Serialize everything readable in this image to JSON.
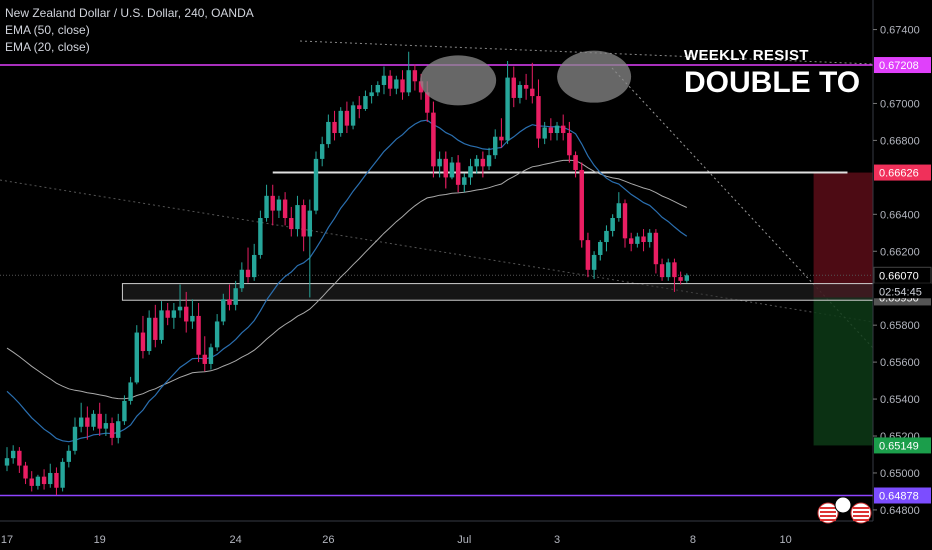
{
  "legend": {
    "symbol_line": "New Zealand Dollar / U.S. Dollar, 240, OANDA",
    "ema50": "EMA (50, close)",
    "ema20": "EMA (20, close)"
  },
  "annotations": {
    "line1": "WEEKLY RESIST",
    "line2": "DOUBLE TO"
  },
  "countdown": "02:54:45",
  "chart_data": {
    "type": "candlestick",
    "instrument": "NZDUSD",
    "timeframe": "240",
    "price_axis": {
      "ylim": [
        0.6474,
        0.6756
      ],
      "ticks": [
        "0.67400",
        "0.67000",
        "0.66800",
        "0.66400",
        "0.66200",
        "0.65800",
        "0.65600",
        "0.65400",
        "0.65200",
        "0.65000",
        "0.64800"
      ]
    },
    "time_axis": {
      "labels": [
        "17",
        "19",
        "24",
        "26",
        "Jul",
        "3",
        "8",
        "10"
      ],
      "label_slots": [
        0,
        15,
        37,
        52,
        74,
        89,
        111,
        126
      ]
    },
    "price_tags": [
      {
        "label": "0.67208",
        "value": 0.67208,
        "bg": "#e040fb",
        "fg": "#ffffff"
      },
      {
        "label": "0.66626",
        "value": 0.66626,
        "bg": "#f0305a",
        "fg": "#ffffff"
      },
      {
        "label": "0.66070",
        "value": 0.6607,
        "bg": "#000000",
        "fg": "#ffffff"
      },
      {
        "label": "0.65950",
        "value": 0.6595,
        "bg": "#555555",
        "fg": "#ffffff"
      },
      {
        "label": "0.65149",
        "value": 0.65149,
        "bg": "#1b9e4b",
        "fg": "#ffffff"
      },
      {
        "label": "0.64878",
        "value": 0.64878,
        "bg": "#7c4dff",
        "fg": "#ffffff"
      }
    ],
    "horizontal_lines": [
      {
        "value": 0.67208,
        "color": "#e040fb"
      },
      {
        "value": 0.64878,
        "color": "#8e44ff"
      },
      {
        "value": 0.66626,
        "color": "#e0e0e0",
        "from_slot": 43,
        "to_slot": 136
      }
    ],
    "support_zone": {
      "top": 0.66025,
      "bottom": 0.65935,
      "from_slot": 19,
      "to_slot": 140
    },
    "position": {
      "entry": 0.6595,
      "stop": 0.66626,
      "target": 0.65149,
      "from_slot": 131,
      "to_slot": 140
    },
    "colors": {
      "up": "#26a69a",
      "down": "#e91e63",
      "ema50": "#aaaaaa",
      "ema20": "#2a6fb0",
      "background": "#000000"
    },
    "candles": [
      [
        0.6504,
        0.6514,
        0.6508,
        0.6501
      ],
      [
        0.6508,
        0.6515,
        0.6512,
        0.6505
      ],
      [
        0.6512,
        0.6514,
        0.6504,
        0.65
      ],
      [
        0.6504,
        0.6506,
        0.6497,
        0.6494
      ],
      [
        0.6497,
        0.6501,
        0.6493,
        0.649
      ],
      [
        0.6493,
        0.6499,
        0.6498,
        0.6491
      ],
      [
        0.6498,
        0.6502,
        0.6494,
        0.6491
      ],
      [
        0.6494,
        0.6505,
        0.65,
        0.6492
      ],
      [
        0.65,
        0.6503,
        0.6492,
        0.6488
      ],
      [
        0.6492,
        0.6508,
        0.6506,
        0.649
      ],
      [
        0.6506,
        0.6515,
        0.6512,
        0.6503
      ],
      [
        0.6512,
        0.653,
        0.6525,
        0.651
      ],
      [
        0.6525,
        0.6538,
        0.653,
        0.6522
      ],
      [
        0.653,
        0.6536,
        0.6525,
        0.6518
      ],
      [
        0.6525,
        0.6534,
        0.6532,
        0.6523
      ],
      [
        0.6532,
        0.6538,
        0.6524,
        0.652
      ],
      [
        0.6524,
        0.6532,
        0.6527,
        0.652
      ],
      [
        0.6527,
        0.653,
        0.6519,
        0.6515
      ],
      [
        0.6519,
        0.6532,
        0.6528,
        0.6516
      ],
      [
        0.6528,
        0.6542,
        0.6539,
        0.6526
      ],
      [
        0.6539,
        0.6552,
        0.6549,
        0.6537
      ],
      [
        0.6549,
        0.658,
        0.6576,
        0.6548
      ],
      [
        0.6576,
        0.6585,
        0.6566,
        0.6562
      ],
      [
        0.6566,
        0.6588,
        0.6584,
        0.6564
      ],
      [
        0.6584,
        0.6591,
        0.6572,
        0.6568
      ],
      [
        0.6572,
        0.6593,
        0.6588,
        0.657
      ],
      [
        0.6588,
        0.6592,
        0.6584,
        0.658
      ],
      [
        0.6584,
        0.6592,
        0.6588,
        0.6578
      ],
      [
        0.6588,
        0.6602,
        0.659,
        0.6584
      ],
      [
        0.659,
        0.6598,
        0.6582,
        0.6576
      ],
      [
        0.6582,
        0.6594,
        0.6585,
        0.6578
      ],
      [
        0.6585,
        0.6592,
        0.6564,
        0.656
      ],
      [
        0.6564,
        0.6574,
        0.6559,
        0.6555
      ],
      [
        0.6559,
        0.657,
        0.6568,
        0.6556
      ],
      [
        0.6568,
        0.6586,
        0.6582,
        0.6566
      ],
      [
        0.6582,
        0.6597,
        0.6594,
        0.658
      ],
      [
        0.6594,
        0.6602,
        0.6591,
        0.6588
      ],
      [
        0.6591,
        0.6604,
        0.66,
        0.6588
      ],
      [
        0.66,
        0.6614,
        0.661,
        0.6598
      ],
      [
        0.661,
        0.6622,
        0.6606,
        0.6603
      ],
      [
        0.6606,
        0.6624,
        0.6618,
        0.6604
      ],
      [
        0.6618,
        0.6642,
        0.6638,
        0.6616
      ],
      [
        0.6638,
        0.6656,
        0.665,
        0.6636
      ],
      [
        0.665,
        0.6656,
        0.6642,
        0.6634
      ],
      [
        0.6642,
        0.665,
        0.6648,
        0.6638
      ],
      [
        0.6648,
        0.6652,
        0.6638,
        0.6634
      ],
      [
        0.6638,
        0.6644,
        0.6632,
        0.6628
      ],
      [
        0.6632,
        0.665,
        0.6645,
        0.6628
      ],
      [
        0.6645,
        0.6648,
        0.6628,
        0.662
      ],
      [
        0.6628,
        0.6648,
        0.6642,
        0.6595
      ],
      [
        0.6642,
        0.6674,
        0.667,
        0.664
      ],
      [
        0.667,
        0.6682,
        0.6678,
        0.6666
      ],
      [
        0.6678,
        0.6694,
        0.669,
        0.6676
      ],
      [
        0.669,
        0.6696,
        0.6684,
        0.668
      ],
      [
        0.6684,
        0.6698,
        0.6696,
        0.6682
      ],
      [
        0.6696,
        0.6701,
        0.6688,
        0.6684
      ],
      [
        0.6688,
        0.6701,
        0.6699,
        0.6686
      ],
      [
        0.6699,
        0.6704,
        0.6697,
        0.6692
      ],
      [
        0.6697,
        0.6707,
        0.6704,
        0.6696
      ],
      [
        0.6704,
        0.671,
        0.6706,
        0.67
      ],
      [
        0.6706,
        0.6712,
        0.671,
        0.6704
      ],
      [
        0.671,
        0.672,
        0.6715,
        0.6705
      ],
      [
        0.6715,
        0.6718,
        0.6708,
        0.6704
      ],
      [
        0.6708,
        0.6715,
        0.6713,
        0.6705
      ],
      [
        0.6713,
        0.6718,
        0.6706,
        0.6702
      ],
      [
        0.6706,
        0.6728,
        0.6718,
        0.6704
      ],
      [
        0.6718,
        0.6721,
        0.6712,
        0.6707
      ],
      [
        0.6712,
        0.6716,
        0.6706,
        0.6702
      ],
      [
        0.6706,
        0.6712,
        0.6695,
        0.669
      ],
      [
        0.6695,
        0.6701,
        0.6666,
        0.666
      ],
      [
        0.6666,
        0.6674,
        0.667,
        0.666
      ],
      [
        0.667,
        0.6674,
        0.666,
        0.6654
      ],
      [
        0.666,
        0.6671,
        0.6668,
        0.6659
      ],
      [
        0.6668,
        0.6672,
        0.6656,
        0.6652
      ],
      [
        0.6656,
        0.6662,
        0.666,
        0.6652
      ],
      [
        0.666,
        0.667,
        0.6666,
        0.6656
      ],
      [
        0.6666,
        0.6672,
        0.667,
        0.6662
      ],
      [
        0.667,
        0.6674,
        0.6666,
        0.666
      ],
      [
        0.6666,
        0.6676,
        0.6672,
        0.6664
      ],
      [
        0.6672,
        0.6686,
        0.6682,
        0.667
      ],
      [
        0.6682,
        0.6692,
        0.668,
        0.6676
      ],
      [
        0.668,
        0.6723,
        0.6714,
        0.6678
      ],
      [
        0.6714,
        0.672,
        0.6703,
        0.6698
      ],
      [
        0.6703,
        0.6712,
        0.671,
        0.67
      ],
      [
        0.671,
        0.6716,
        0.6708,
        0.6702
      ],
      [
        0.6708,
        0.6722,
        0.6704,
        0.67
      ],
      [
        0.6704,
        0.6713,
        0.6681,
        0.6676
      ],
      [
        0.6681,
        0.669,
        0.6687,
        0.6678
      ],
      [
        0.6687,
        0.6692,
        0.6684,
        0.668
      ],
      [
        0.6684,
        0.669,
        0.6688,
        0.668
      ],
      [
        0.6688,
        0.6694,
        0.6684,
        0.668
      ],
      [
        0.6684,
        0.669,
        0.6672,
        0.6668
      ],
      [
        0.6672,
        0.6674,
        0.6664,
        0.666
      ],
      [
        0.6664,
        0.6668,
        0.6626,
        0.6622
      ],
      [
        0.6626,
        0.663,
        0.661,
        0.6606
      ],
      [
        0.661,
        0.662,
        0.6618,
        0.6605
      ],
      [
        0.6618,
        0.6626,
        0.6625,
        0.6615
      ],
      [
        0.6625,
        0.6634,
        0.6631,
        0.662
      ],
      [
        0.6631,
        0.664,
        0.6638,
        0.6628
      ],
      [
        0.6638,
        0.6652,
        0.6646,
        0.6636
      ],
      [
        0.6646,
        0.6648,
        0.6627,
        0.6622
      ],
      [
        0.6627,
        0.663,
        0.6624,
        0.662
      ],
      [
        0.6624,
        0.663,
        0.6628,
        0.6622
      ],
      [
        0.6628,
        0.6632,
        0.6625,
        0.662
      ],
      [
        0.6625,
        0.6632,
        0.663,
        0.6622
      ],
      [
        0.663,
        0.6632,
        0.6613,
        0.6608
      ],
      [
        0.6613,
        0.6616,
        0.6606,
        0.6604
      ],
      [
        0.6606,
        0.6616,
        0.6614,
        0.6604
      ],
      [
        0.6614,
        0.6616,
        0.6606,
        0.6598
      ],
      [
        0.6606,
        0.6609,
        0.6604,
        0.6602
      ],
      [
        0.6604,
        0.6608,
        0.6607,
        0.6603
      ]
    ]
  }
}
